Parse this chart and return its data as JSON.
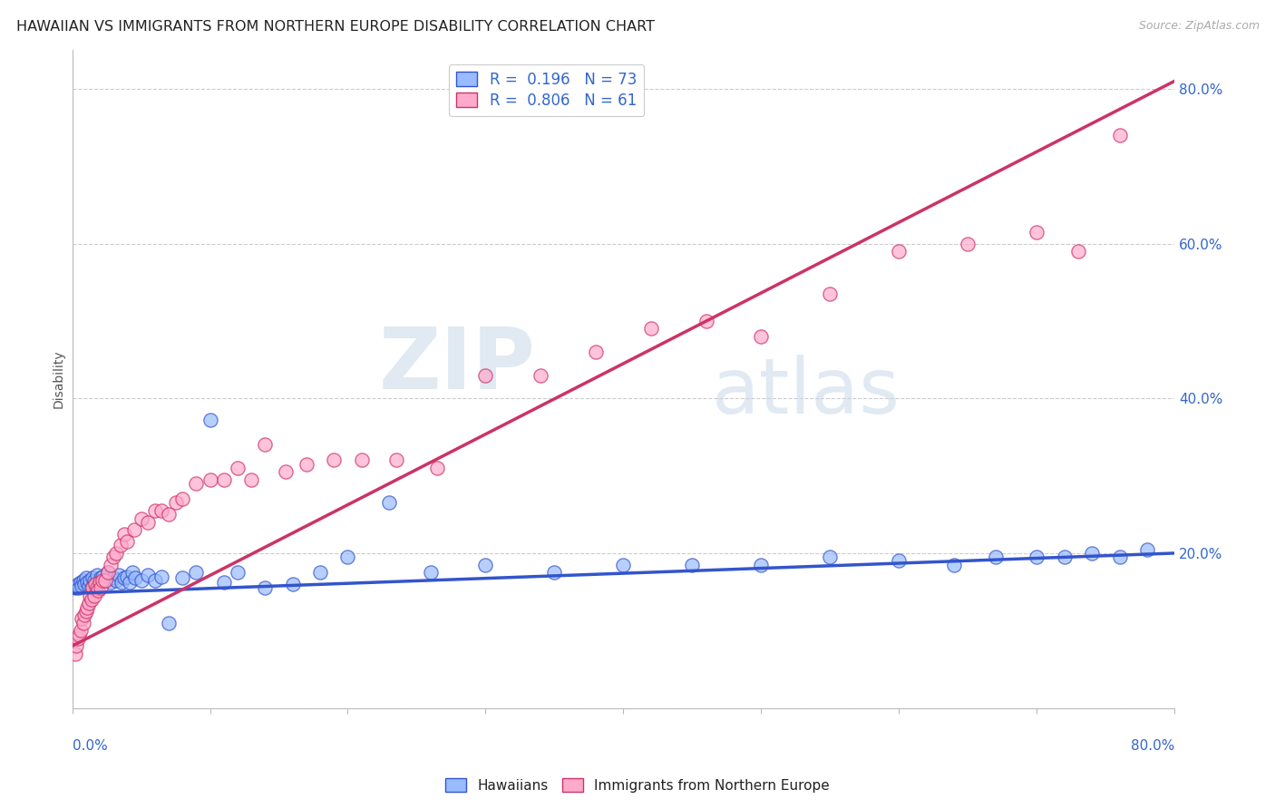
{
  "title": "HAWAIIAN VS IMMIGRANTS FROM NORTHERN EUROPE DISABILITY CORRELATION CHART",
  "source": "Source: ZipAtlas.com",
  "ylabel": "Disability",
  "ytick_labels": [
    "",
    "20.0%",
    "40.0%",
    "60.0%",
    "80.0%"
  ],
  "ytick_values": [
    0.0,
    0.2,
    0.4,
    0.6,
    0.8
  ],
  "xlim": [
    0.0,
    0.8
  ],
  "ylim": [
    0.0,
    0.85
  ],
  "hawaiians_color": "#99bbff",
  "immigrants_color": "#ffaacc",
  "trendline_hawaiians_color": "#3355cc",
  "trendline_immigrants_color": "#cc3366",
  "watermark_zip": "ZIP",
  "watermark_atlas": "atlas",
  "background_color": "#ffffff",
  "grid_color": "#cccccc",
  "hawaiians_x": [
    0.002,
    0.003,
    0.004,
    0.005,
    0.006,
    0.007,
    0.008,
    0.009,
    0.01,
    0.011,
    0.012,
    0.013,
    0.014,
    0.015,
    0.016,
    0.017,
    0.018,
    0.019,
    0.02,
    0.021,
    0.022,
    0.024,
    0.026,
    0.028,
    0.03,
    0.032,
    0.034,
    0.036,
    0.038,
    0.04,
    0.042,
    0.044,
    0.046,
    0.05,
    0.055,
    0.06,
    0.065,
    0.07,
    0.08,
    0.09,
    0.1,
    0.11,
    0.12,
    0.14,
    0.16,
    0.18,
    0.2,
    0.23,
    0.26,
    0.3,
    0.35,
    0.4,
    0.45,
    0.5,
    0.55,
    0.6,
    0.64,
    0.67,
    0.7,
    0.72,
    0.74,
    0.76,
    0.78
  ],
  "hawaiians_y": [
    0.155,
    0.158,
    0.16,
    0.155,
    0.162,
    0.158,
    0.165,
    0.16,
    0.168,
    0.162,
    0.158,
    0.165,
    0.155,
    0.168,
    0.165,
    0.16,
    0.172,
    0.158,
    0.162,
    0.168,
    0.17,
    0.165,
    0.175,
    0.162,
    0.168,
    0.165,
    0.172,
    0.162,
    0.168,
    0.17,
    0.162,
    0.175,
    0.168,
    0.165,
    0.172,
    0.165,
    0.17,
    0.11,
    0.168,
    0.175,
    0.372,
    0.162,
    0.175,
    0.155,
    0.16,
    0.175,
    0.195,
    0.265,
    0.175,
    0.185,
    0.175,
    0.185,
    0.185,
    0.185,
    0.195,
    0.19,
    0.185,
    0.195,
    0.195,
    0.195,
    0.2,
    0.195,
    0.205
  ],
  "immigrants_x": [
    0.002,
    0.003,
    0.004,
    0.005,
    0.006,
    0.007,
    0.008,
    0.009,
    0.01,
    0.011,
    0.012,
    0.013,
    0.014,
    0.015,
    0.016,
    0.017,
    0.018,
    0.019,
    0.02,
    0.021,
    0.022,
    0.024,
    0.026,
    0.028,
    0.03,
    0.032,
    0.035,
    0.038,
    0.04,
    0.045,
    0.05,
    0.055,
    0.06,
    0.065,
    0.07,
    0.075,
    0.08,
    0.09,
    0.1,
    0.11,
    0.12,
    0.13,
    0.14,
    0.155,
    0.17,
    0.19,
    0.21,
    0.235,
    0.265,
    0.3,
    0.34,
    0.38,
    0.42,
    0.46,
    0.5,
    0.55,
    0.6,
    0.65,
    0.7,
    0.73,
    0.76
  ],
  "immigrants_y": [
    0.07,
    0.08,
    0.09,
    0.095,
    0.1,
    0.115,
    0.11,
    0.12,
    0.125,
    0.13,
    0.135,
    0.145,
    0.14,
    0.155,
    0.145,
    0.16,
    0.155,
    0.152,
    0.162,
    0.155,
    0.165,
    0.165,
    0.175,
    0.185,
    0.195,
    0.2,
    0.21,
    0.225,
    0.215,
    0.23,
    0.245,
    0.24,
    0.255,
    0.255,
    0.25,
    0.265,
    0.27,
    0.29,
    0.295,
    0.295,
    0.31,
    0.295,
    0.34,
    0.305,
    0.315,
    0.32,
    0.32,
    0.32,
    0.31,
    0.43,
    0.43,
    0.46,
    0.49,
    0.5,
    0.48,
    0.535,
    0.59,
    0.6,
    0.615,
    0.59,
    0.74
  ],
  "trendline_h_x0": 0.0,
  "trendline_h_y0": 0.148,
  "trendline_h_x1": 0.8,
  "trendline_h_y1": 0.2,
  "trendline_i_x0": 0.0,
  "trendline_i_y0": 0.08,
  "trendline_i_x1": 0.8,
  "trendline_i_y1": 0.81
}
